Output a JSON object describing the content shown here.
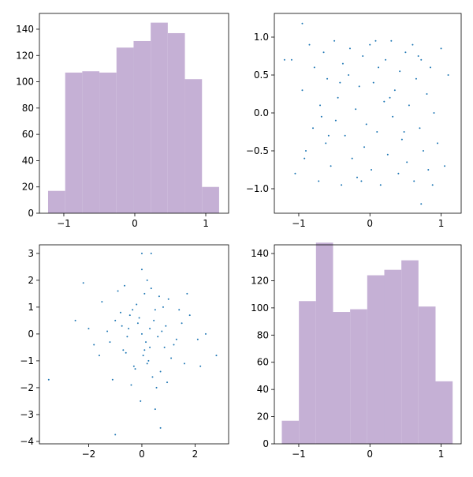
{
  "chart_data": [
    {
      "type": "histogram",
      "color": "#c5b0d5",
      "bins": [
        -1.222,
        -0.981,
        -0.74,
        -0.499,
        -0.258,
        -0.017,
        0.224,
        0.465,
        0.706,
        0.947,
        1.188
      ],
      "counts": [
        17,
        107,
        108,
        107,
        126,
        131,
        145,
        137,
        102,
        20
      ],
      "xlim": [
        -1.344,
        1.322
      ],
      "ylim": [
        0,
        152
      ],
      "xticks": [
        {
          "value": -1,
          "label": "−1"
        },
        0,
        1
      ],
      "yticks": [
        0,
        20,
        40,
        60,
        80,
        100,
        120,
        140
      ]
    },
    {
      "type": "scatter",
      "color": "#1f77b4",
      "x": [
        -1.1,
        -1.05,
        -0.95,
        -0.9,
        -0.85,
        -0.8,
        -0.78,
        -0.72,
        -0.7,
        -0.65,
        -0.62,
        -0.6,
        -0.55,
        -0.5,
        -0.48,
        -0.45,
        -0.4,
        -0.38,
        -0.35,
        -0.3,
        -0.28,
        -0.25,
        -0.2,
        -0.18,
        -0.15,
        -0.1,
        -0.08,
        -0.05,
        0.0,
        0.02,
        0.05,
        0.1,
        0.12,
        0.15,
        0.2,
        0.22,
        0.25,
        0.3,
        0.32,
        0.35,
        0.4,
        0.42,
        0.45,
        0.5,
        0.52,
        0.55,
        0.6,
        0.62,
        0.65,
        0.7,
        0.72,
        0.75,
        0.8,
        0.82,
        0.85,
        0.9,
        0.95,
        1.0,
        1.05,
        1.1,
        -0.92,
        -0.68,
        -0.42,
        -0.12,
        0.08,
        0.28,
        0.48,
        0.68,
        0.88,
        -0.58,
        -1.2,
        0.72,
        -0.95
      ],
      "y": [
        0.7,
        -0.8,
        0.3,
        -0.5,
        0.9,
        -0.2,
        0.6,
        -0.9,
        0.1,
        0.8,
        -0.4,
        0.45,
        -0.7,
        0.95,
        -0.1,
        0.2,
        -0.95,
        0.65,
        -0.3,
        0.5,
        0.85,
        -0.6,
        0.05,
        -0.85,
        0.35,
        0.75,
        -0.45,
        -0.15,
        0.9,
        -0.75,
        0.4,
        -0.25,
        0.6,
        -0.95,
        0.15,
        0.7,
        -0.55,
        0.95,
        -0.05,
        0.3,
        -0.8,
        0.55,
        -0.35,
        0.8,
        -0.65,
        0.1,
        0.9,
        -0.9,
        0.45,
        -0.2,
        0.7,
        -0.5,
        0.25,
        -0.75,
        0.6,
        0.0,
        -0.4,
        0.85,
        -0.7,
        0.5,
        -0.6,
        -0.05,
        0.4,
        -0.9,
        0.95,
        0.2,
        -0.25,
        0.75,
        -0.95,
        -0.3,
        0.7,
        -1.2,
        1.18
      ],
      "xlim": [
        -1.343,
        1.282
      ],
      "ylim": [
        -1.323,
        1.3125
      ],
      "xticks": [
        {
          "value": -1,
          "label": "−1"
        },
        0,
        1
      ],
      "yticks": [
        {
          "value": -1,
          "label": "−1.0"
        },
        {
          "value": -0.5,
          "label": "−0.5"
        },
        {
          "value": 0,
          "label": "0.0"
        },
        0.5,
        {
          "value": 1,
          "label": "1.0"
        }
      ]
    },
    {
      "type": "scatter",
      "color": "#1f77b4",
      "x": [
        -0.5,
        0.3,
        0.8,
        -1.2,
        1.5,
        0.1,
        -0.3,
        0.6,
        -0.8,
        1.1,
        0.0,
        -1.5,
        0.4,
        -0.1,
        0.9,
        -0.6,
        1.3,
        0.2,
        -1.0,
        0.7,
        -0.2,
        0.5,
        -1.8,
        1.8,
        0.05,
        -0.4,
        0.35,
        1.0,
        -0.7,
        0.15,
        -1.3,
        2.1,
        0.55,
        -0.15,
        -2.2,
        0.25,
        0.75,
        -0.9,
        1.6,
        -0.05,
        0.45,
        -0.55,
        1.2,
        -1.1,
        0.0,
        0.65,
        -0.35,
        2.4,
        -2.5,
        0.85,
        -0.25,
        0.3,
        1.4,
        -1.6,
        0.1,
        -0.45,
        0.95,
        -0.75,
        0.2,
        1.7,
        -3.5,
        -1.0,
        0.7,
        2.8,
        0.35,
        0.0,
        -2.0,
        2.2,
        -0.65,
        0.5
      ],
      "y": [
        0.2,
        -0.5,
        1.0,
        -0.3,
        0.4,
        1.5,
        -1.2,
        -0.1,
        0.8,
        -0.9,
        0.0,
        1.2,
        -1.6,
        0.6,
        0.3,
        -0.7,
        -0.2,
        2.0,
        0.5,
        -1.4,
        1.1,
        0.9,
        -0.4,
        0.7,
        -0.8,
        -1.9,
        1.7,
        1.3,
        -0.6,
        -0.3,
        0.1,
        -0.2,
        -2.0,
        0.4,
        1.9,
        -1.0,
        0.1,
        1.6,
        -1.1,
        -2.5,
        0.5,
        -0.1,
        -0.4,
        -1.7,
        2.4,
        1.4,
        0.9,
        0.0,
        0.5,
        -0.5,
        -1.3,
        0.2,
        0.9,
        -0.8,
        -0.6,
        0.7,
        -1.8,
        0.3,
        -1.1,
        1.5,
        -1.7,
        -3.75,
        -3.5,
        -0.8,
        3.0,
        3.0,
        0.2,
        -1.2,
        1.8,
        -2.8
      ],
      "xlim": [
        -3.85,
        3.26
      ],
      "ylim": [
        -4.09,
        3.32
      ],
      "xticks": [
        {
          "value": -2,
          "label": "−2"
        },
        0,
        2
      ],
      "yticks": [
        {
          "value": -4,
          "label": "−4"
        },
        {
          "value": -3,
          "label": "−3"
        },
        {
          "value": -2,
          "label": "−2"
        },
        {
          "value": -1,
          "label": "−1"
        },
        0,
        1,
        2,
        3
      ]
    },
    {
      "type": "histogram",
      "color": "#c5b0d5",
      "bins": [
        -1.238,
        -0.998,
        -0.758,
        -0.518,
        -0.278,
        -0.038,
        0.202,
        0.442,
        0.682,
        0.922,
        1.162
      ],
      "counts": [
        17,
        105,
        148,
        97,
        99,
        124,
        128,
        135,
        101,
        46
      ],
      "xlim": [
        -1.343,
        1.282
      ],
      "ylim": [
        0,
        146.4
      ],
      "xticks": [
        {
          "value": -1,
          "label": "−1"
        },
        0,
        1
      ],
      "yticks": [
        0,
        20,
        40,
        60,
        80,
        100,
        120,
        140
      ]
    }
  ]
}
